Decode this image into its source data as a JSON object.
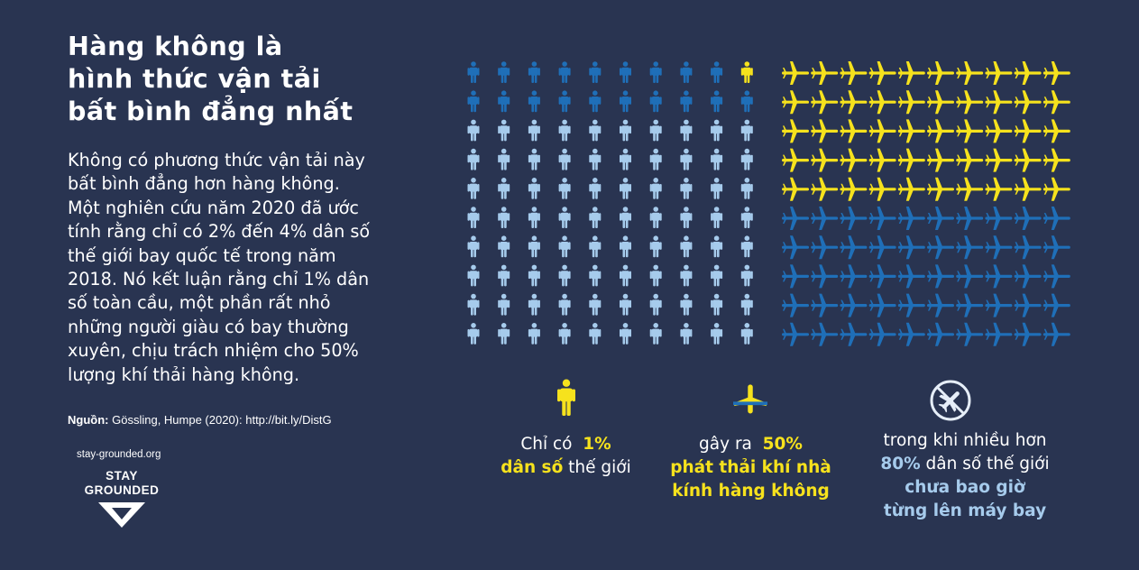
{
  "title": {
    "line1": "Hàng không là",
    "line2": "hình thức vận tải",
    "line3": "bất bình đẳng nhất"
  },
  "body": {
    "lines": [
      "Không có phương thức vận tải này",
      "bất bình đẳng hơn hàng không.",
      "Một nghiên cứu năm 2020 đã ước",
      "tính rằng chỉ có 2% đến 4% dân số",
      "thế giới bay quốc tế trong năm",
      "2018. Nó kết luận rằng chỉ 1% dân",
      "số toàn cầu, một phần rất nhỏ",
      "những người giàu có bay thường",
      "xuyên, chịu trách nhiệm cho 50%",
      "lượng khí thải hàng không."
    ]
  },
  "source": {
    "label": "Nguồn:",
    "text": "Gössling, Humpe (2020): http://bit.ly/DistG"
  },
  "logo": {
    "url": "stay-grounded.org",
    "word1": "STAY",
    "word2": "GROUNDED"
  },
  "people_grid": {
    "columns": 10,
    "rows": 10,
    "highlight_count": 1,
    "medium_count": 19,
    "light_count": 80
  },
  "planes_grid": {
    "columns": 10,
    "rows": 10,
    "yellow_count": 50,
    "blue_count": 50
  },
  "captions": {
    "c1": {
      "pre": "Chỉ có",
      "highlight_top": "1%",
      "highlight_bottom": "dân số",
      "post": "thế giới"
    },
    "c2": {
      "pre": "gây ra",
      "highlight_top": "50%",
      "line2": "phát thải khí nhà",
      "line3": "kính hàng không"
    },
    "c3": {
      "line1": "trong khi nhiều hơn",
      "pct": "80%",
      "line2_post": "dân số thế giới",
      "line3": "chưa bao giờ",
      "line4": "từng lên máy bay"
    }
  },
  "colors": {
    "background": "#293451",
    "yellow": "#f6e21d",
    "medium_blue": "#1f6fb8",
    "light_blue": "#a6cbec",
    "text": "#ffffff"
  },
  "icons": [
    "person-icon",
    "plane-icon",
    "no-flight-icon",
    "stay-grounded-logo-icon"
  ]
}
